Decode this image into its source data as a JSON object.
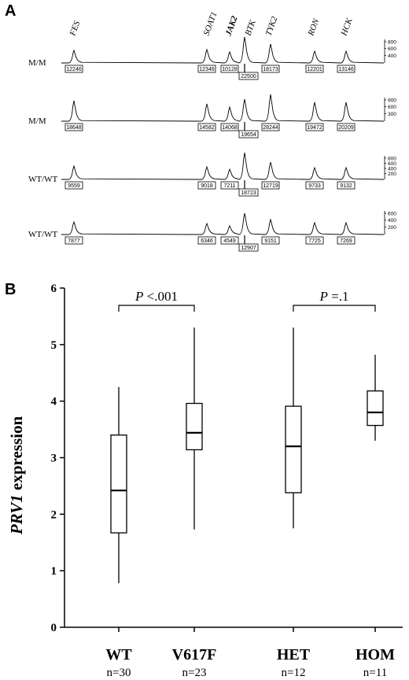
{
  "panel_a": {
    "letter": "A",
    "genes": [
      {
        "name": "FES",
        "bold": false
      },
      {
        "name": "SOAT1",
        "bold": false
      },
      {
        "name": "JAK2",
        "bold": true
      },
      {
        "name": "BTK",
        "bold": false
      },
      {
        "name": "TYK2",
        "bold": false
      },
      {
        "name": "RON",
        "bold": false
      },
      {
        "name": "HCK",
        "bold": false
      }
    ],
    "traces": [
      {
        "label": "M/M",
        "scale": [
          "800",
          "600",
          "400"
        ],
        "peak_values": [
          "12246",
          "12346",
          "10128",
          "22500",
          "18173",
          "12201",
          "13146"
        ]
      },
      {
        "label": "M/M",
        "scale": [
          "900",
          "600",
          "300"
        ],
        "peak_values": [
          "18648",
          "14582",
          "14068",
          "19654",
          "28244",
          "19472",
          "20209"
        ]
      },
      {
        "label": "WT/WT",
        "scale": [
          "800",
          "600",
          "400",
          "200"
        ],
        "peak_values": [
          "9559",
          "9018",
          "7211",
          "18723",
          "12719",
          "9733",
          "9132"
        ]
      },
      {
        "label": "WT/WT",
        "scale": [
          "600",
          "400",
          "200"
        ],
        "peak_values": [
          "7877",
          "6346",
          "4549",
          "12907",
          "9151",
          "7725",
          "7269"
        ]
      }
    ]
  },
  "panel_b": {
    "letter": "B",
    "comparisons": [
      {
        "p_italic": "P",
        "p_rest": " <.001"
      },
      {
        "p_italic": "P",
        "p_rest": " =.1"
      }
    ],
    "ylabel_italic": "PRV1",
    "ylabel_rest": " expression"
  },
  "chart_data": {
    "type": "box",
    "title": "",
    "xlabel": "",
    "ylabel": "PRV1 expression",
    "ylim": [
      0,
      6
    ],
    "yticks": [
      "0",
      "1",
      "2",
      "3",
      "4",
      "5",
      "6"
    ],
    "categories": [
      "WT",
      "V617F",
      "HET",
      "HOM"
    ],
    "n_labels": [
      "n=30",
      "n=23",
      "n=12",
      "n=11"
    ],
    "boxes": [
      {
        "category": "WT",
        "min": 0.78,
        "q1": 1.67,
        "median": 2.42,
        "q3": 3.4,
        "max": 4.25
      },
      {
        "category": "V617F",
        "min": 1.73,
        "q1": 3.14,
        "median": 3.44,
        "q3": 3.96,
        "max": 5.3
      },
      {
        "category": "HET",
        "min": 1.75,
        "q1": 2.38,
        "median": 3.2,
        "q3": 3.91,
        "max": 5.3
      },
      {
        "category": "HOM",
        "min": 3.3,
        "q1": 3.57,
        "median": 3.8,
        "q3": 4.18,
        "max": 4.82
      }
    ],
    "grid": false,
    "legend": "none"
  }
}
